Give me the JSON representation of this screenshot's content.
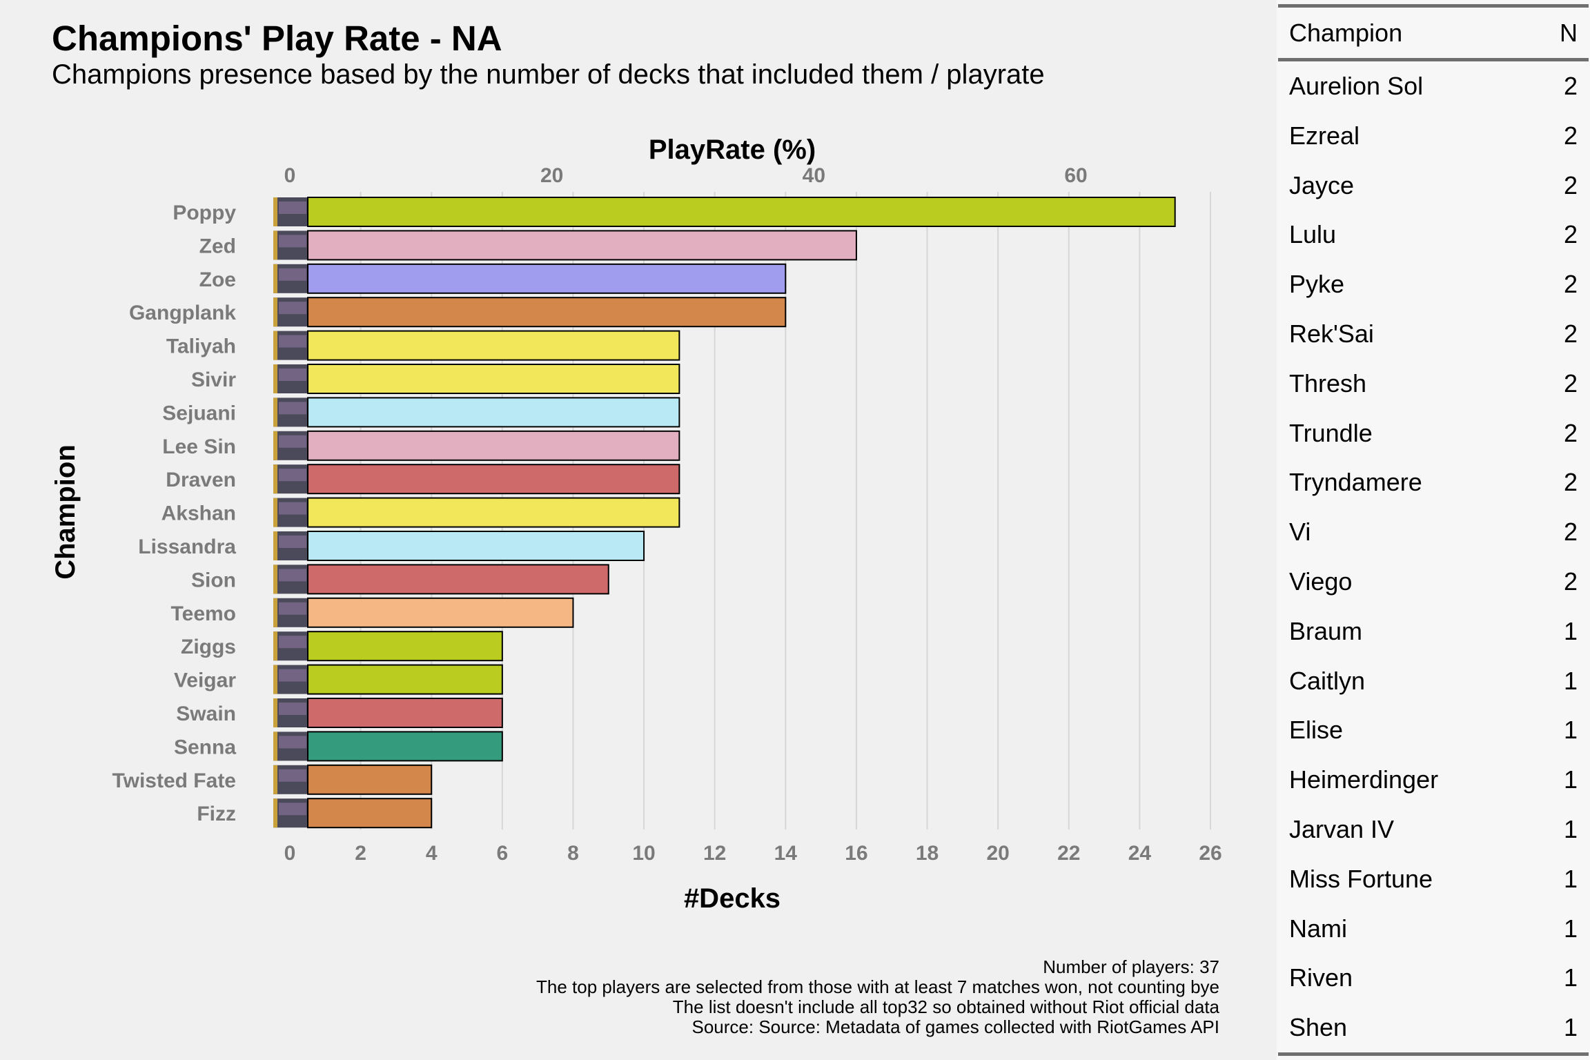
{
  "header": {
    "title": "Champions' Play Rate - NA",
    "subtitle": "Champions presence based by the number of decks that included them / playrate"
  },
  "caption": {
    "lines": [
      "Number of players: 37",
      "The top players are selected from those with at least 7 matches won, not counting bye",
      "The list doesn't include all top32 so obtained without Riot official data",
      "Source: Source: Metadata of games collected with RiotGames API"
    ]
  },
  "chart_data": {
    "type": "bar",
    "orientation": "horizontal",
    "title": "Champions' Play Rate - NA",
    "subtitle": "Champions presence based by the number of decks that included them / playrate",
    "xlabel": "#Decks",
    "x2label": "PlayRate (%)",
    "ylabel": "Champion",
    "xlim": [
      0,
      26
    ],
    "xticks": [
      0,
      2,
      4,
      6,
      8,
      10,
      12,
      14,
      16,
      18,
      20,
      22,
      24,
      26
    ],
    "x2ticks": [
      0,
      20,
      40,
      60
    ],
    "x2_per_x": 2.7027,
    "grid": "vertical",
    "categories": [
      "Poppy",
      "Zed",
      "Zoe",
      "Gangplank",
      "Taliyah",
      "Sivir",
      "Sejuani",
      "Lee Sin",
      "Draven",
      "Akshan",
      "Lissandra",
      "Sion",
      "Teemo",
      "Ziggs",
      "Veigar",
      "Swain",
      "Senna",
      "Twisted Fate",
      "Fizz"
    ],
    "values": [
      25,
      16,
      14,
      14,
      11,
      11,
      11,
      11,
      11,
      11,
      10,
      9,
      8,
      6,
      6,
      6,
      6,
      4,
      4
    ],
    "colors": [
      "#b9cc1f",
      "#e1afbf",
      "#a09cee",
      "#d4874b",
      "#f2e75b",
      "#f2e75b",
      "#bae9f6",
      "#e1afbf",
      "#cf6a6a",
      "#f2e75b",
      "#bae9f6",
      "#cf6a6a",
      "#f5b885",
      "#b9cc1f",
      "#b9cc1f",
      "#cf6a6a",
      "#349b7c",
      "#d4874b",
      "#d4874b"
    ]
  },
  "table": {
    "headers": {
      "champion": "Champion",
      "n": "N"
    },
    "rows": [
      {
        "champion": "Aurelion Sol",
        "n": "2"
      },
      {
        "champion": "Ezreal",
        "n": "2"
      },
      {
        "champion": "Jayce",
        "n": "2"
      },
      {
        "champion": "Lulu",
        "n": "2"
      },
      {
        "champion": "Pyke",
        "n": "2"
      },
      {
        "champion": "Rek'Sai",
        "n": "2"
      },
      {
        "champion": "Thresh",
        "n": "2"
      },
      {
        "champion": "Trundle",
        "n": "2"
      },
      {
        "champion": "Tryndamere",
        "n": "2"
      },
      {
        "champion": "Vi",
        "n": "2"
      },
      {
        "champion": "Viego",
        "n": "2"
      },
      {
        "champion": "Braum",
        "n": "1"
      },
      {
        "champion": "Caitlyn",
        "n": "1"
      },
      {
        "champion": "Elise",
        "n": "1"
      },
      {
        "champion": "Heimerdinger",
        "n": "1"
      },
      {
        "champion": "Jarvan IV",
        "n": "1"
      },
      {
        "champion": "Miss Fortune",
        "n": "1"
      },
      {
        "champion": "Nami",
        "n": "1"
      },
      {
        "champion": "Riven",
        "n": "1"
      },
      {
        "champion": "Shen",
        "n": "1"
      }
    ]
  }
}
